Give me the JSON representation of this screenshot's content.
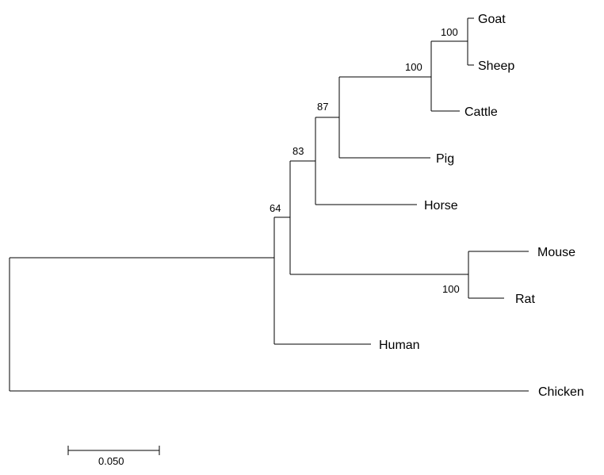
{
  "tree": {
    "taxa": [
      "Goat",
      "Sheep",
      "Cattle",
      "Pig",
      "Horse",
      "Mouse",
      "Rat",
      "Human",
      "Chicken"
    ],
    "bootstrap_values": [
      "100",
      "100",
      "87",
      "83",
      "64",
      "100"
    ],
    "scale_bar": {
      "length": 0.05,
      "label": "0.050"
    },
    "line_color": "#000000"
  }
}
